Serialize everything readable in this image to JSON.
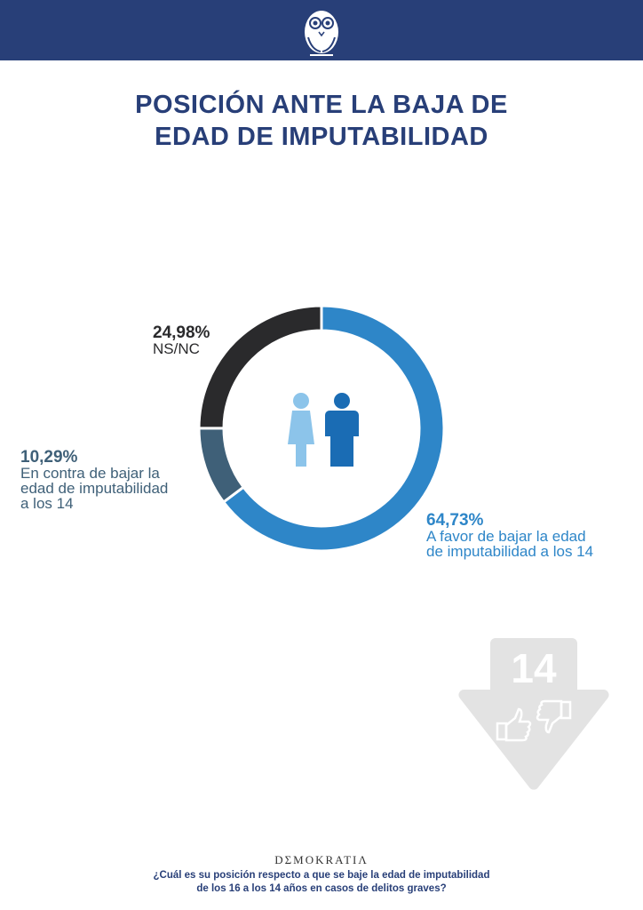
{
  "header": {
    "logo": "owl-logo"
  },
  "title_line1": "POSICIÓN ANTE LA BAJA DE",
  "title_line2": "EDAD DE IMPUTABILIDAD",
  "chart_data": {
    "type": "pie",
    "title": "POSICIÓN ANTE LA BAJA DE EDAD DE IMPUTABILIDAD",
    "slices": [
      {
        "label": "A favor de bajar la edad de imputabilidad a los 14",
        "value": 64.73,
        "pct_text": "64,73%",
        "color": "#2e86c8"
      },
      {
        "label": "En contra de bajar la edad de imputabilidad a los 14",
        "value": 10.29,
        "pct_text": "10,29%",
        "color": "#3f6078"
      },
      {
        "label": "NS/NC",
        "value": 24.98,
        "pct_text": "24,98%",
        "color": "#2a2a2c"
      }
    ]
  },
  "labels": {
    "favor": {
      "pct": "64,73%",
      "l1": "A favor de bajar la edad",
      "l2": "de imputabilidad a los 14"
    },
    "contra": {
      "pct": "10,29%",
      "l1": "En contra de bajar la",
      "l2": "edad de imputabilidad",
      "l3": "a los 14"
    },
    "nsnc": {
      "pct": "24,98%",
      "l1": "NS/NC"
    }
  },
  "badge": {
    "number": "14"
  },
  "footer": {
    "brand": "DΣMOKRATIΛ",
    "q1": "¿Cuál es su posición respecto a que se baje la edad de imputabilidad",
    "q2": "de los 16 a los 14 años en casos de delitos graves?"
  }
}
